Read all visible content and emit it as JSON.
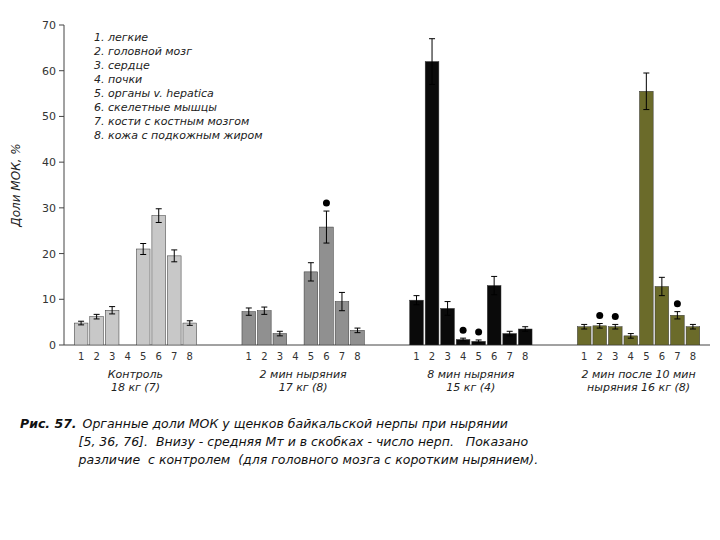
{
  "chart_data": {
    "type": "bar",
    "title": "Рис. 57.",
    "subtitle": " Органные доли МОК у щенков байкальской нерпы при нырянии\n[5, 36, 76].  Внизу - средняя Мт и в скобках - число нерп.   Показано\nразличие  с контролем  (для головного мозга с коротким нырянием).",
    "y_label": "Доли МОК, %",
    "categories": [
      "1",
      "2",
      "3",
      "4",
      "5",
      "6",
      "7",
      "8"
    ],
    "series": [
      {
        "name": "Контроль\n18 кг (7)",
        "color": "#c8c8c8",
        "values": [
          4.8,
          6.2,
          7.6,
          0,
          21.0,
          28.3,
          19.5,
          4.8
        ],
        "errors": [
          0.4,
          0.5,
          0.8,
          0,
          1.2,
          1.5,
          1.3,
          0.5
        ],
        "markers": [
          false,
          false,
          false,
          false,
          false,
          false,
          false,
          false
        ]
      },
      {
        "name": "2 мин ныряния\n17 кг (8)",
        "color": "#909090",
        "values": [
          7.3,
          7.5,
          2.5,
          0,
          16.0,
          25.8,
          9.5,
          3.2
        ],
        "errors": [
          0.8,
          0.8,
          0.5,
          0,
          2.0,
          3.5,
          2.0,
          0.5
        ],
        "markers": [
          false,
          false,
          false,
          false,
          false,
          true,
          false,
          false
        ]
      },
      {
        "name": "8 мин ныряния\n15 кг (4)",
        "color": "#0a0a0a",
        "values": [
          9.8,
          62.0,
          8.0,
          1.2,
          0.8,
          13.0,
          2.5,
          3.5
        ],
        "errors": [
          1.0,
          5.0,
          1.5,
          0.3,
          0.3,
          2.0,
          0.5,
          0.5
        ],
        "markers": [
          false,
          false,
          false,
          true,
          true,
          false,
          false,
          false
        ]
      },
      {
        "name": "2 мин после 10 мин\nныряния 16 кг (8)",
        "color": "#6b6b2a",
        "values": [
          4.0,
          4.2,
          4.0,
          2.0,
          55.5,
          12.8,
          6.5,
          4.0
        ],
        "errors": [
          0.5,
          0.5,
          0.5,
          0.5,
          4.0,
          2.0,
          0.8,
          0.5
        ],
        "markers": [
          false,
          true,
          true,
          false,
          false,
          false,
          true,
          false
        ]
      }
    ],
    "annotations": [
      "1. легкие",
      "2. головной мозг",
      "3. сердце",
      "4. почки",
      "5. органы v. hepatica",
      "6. скелетные мышцы",
      "7. кости с костным мозгом",
      "8. кожа с подкожным жиром"
    ],
    "ylim": [
      0,
      70
    ],
    "yticks": [
      0,
      10,
      20,
      30,
      40,
      50,
      60,
      70
    ]
  }
}
